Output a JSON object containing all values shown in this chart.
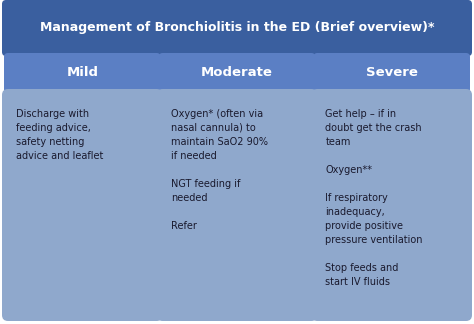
{
  "title": "Management of Bronchiolitis in the ED (Brief overview)*",
  "title_bg": "#3a5f9f",
  "title_color": "#ffffff",
  "header_bg": "#5b7fc4",
  "header_color": "#ffffff",
  "cell_bg": "#8fa8cc",
  "cell_border": "#5b7fc4",
  "fig_bg": "#ffffff",
  "columns": [
    "Mild",
    "Moderate",
    "Severe"
  ],
  "content": [
    "Discharge with\nfeeding advice,\nsafety netting\nadvice and leaflet",
    "Oxygen* (often via\nnasal cannula) to\nmaintain SaO2 90%\nif needed\n\nNGT feeding if\nneeded\n\nRefer",
    "Get help – if in\ndoubt get the crash\nteam\n\nOxygen**\n\nIf respiratory\ninadequacy,\nprovide positive\npressure ventilation\n\nStop feeds and\nstart IV fluids"
  ],
  "title_fontsize": 9.0,
  "header_fontsize": 9.5,
  "content_fontsize": 7.0,
  "fig_width": 4.74,
  "fig_height": 3.24,
  "dpi": 100
}
